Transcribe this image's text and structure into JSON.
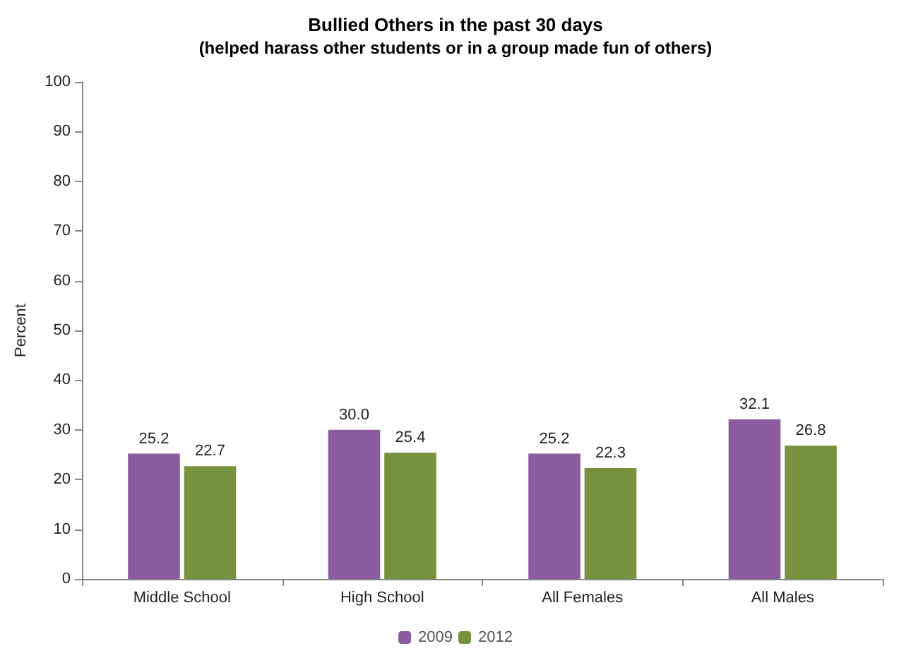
{
  "chart_data": {
    "type": "bar",
    "title": "Bullied Others in the past 30 days",
    "subtitle": "(helped harass other students or in a group made fun of others)",
    "ylabel": "Percent",
    "categories": [
      "Middle School",
      "High School",
      "All Females",
      "All Males"
    ],
    "series": [
      {
        "name": "2009",
        "color": "#8b5ca0",
        "values": [
          25.2,
          30.0,
          25.2,
          32.1
        ],
        "value_labels": [
          "25.2",
          "30.0",
          "25.2",
          "32.1"
        ]
      },
      {
        "name": "2012",
        "color": "#76923c",
        "values": [
          22.7,
          25.4,
          22.3,
          26.8
        ],
        "value_labels": [
          "22.7",
          "25.4",
          "22.3",
          "26.8"
        ]
      }
    ],
    "ylim": [
      0,
      100
    ],
    "yticks": [
      0,
      10,
      20,
      30,
      40,
      50,
      60,
      70,
      80,
      90,
      100
    ],
    "grid": false,
    "legend": "bottom"
  }
}
